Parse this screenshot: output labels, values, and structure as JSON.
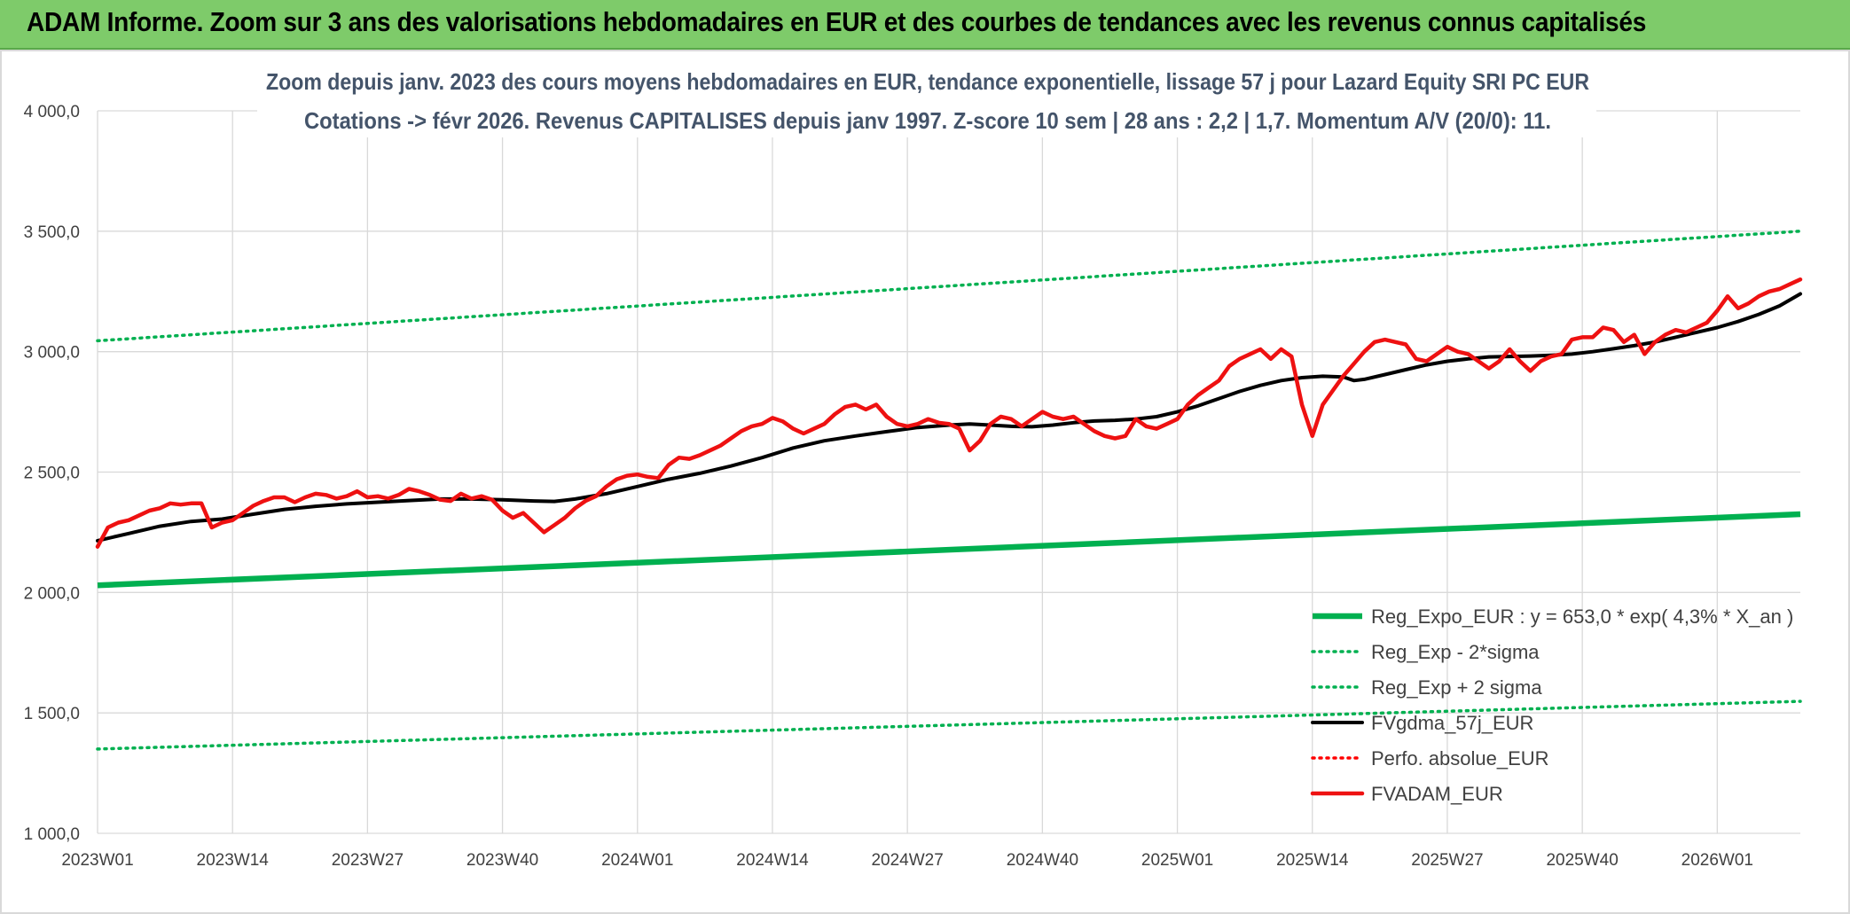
{
  "banner": {
    "title": "ADAM Informe. Zoom sur 3 ans des valorisations hebdomadaires en EUR et des courbes de tendances avec les revenus connus capitalisés"
  },
  "colors": {
    "banner_bg": "#7ecb6a",
    "reg_green": "#00b050",
    "dotted_green": "#00b050",
    "gdma_black": "#000000",
    "perf_red": "#ff0000",
    "fvadam_red": "#ee1111",
    "title_text": "#44546a",
    "grid": "#d9d9d9"
  },
  "chart_data": {
    "type": "line",
    "title_lines": [
      "Zoom depuis janv. 2023 des cours moyens hebdomadaires en EUR, tendance exponentielle, lissage 57 j pour Lazard Equity SRI PC EUR",
      "Cotations -> févr 2026. Revenus CAPITALISES depuis janv 1997. Z-score 10 sem | 28 ans : 2,2 | 1,7. Momentum A/V (20/0): 11."
    ],
    "ylim": [
      1000,
      4000
    ],
    "yticks": [
      {
        "value": 1000,
        "label": "1 000,0"
      },
      {
        "value": 1500,
        "label": "1 500,0"
      },
      {
        "value": 2000,
        "label": "2 000,0"
      },
      {
        "value": 2500,
        "label": "2 500,0"
      },
      {
        "value": 3000,
        "label": "3 000,0"
      },
      {
        "value": 3500,
        "label": "3 500,0"
      },
      {
        "value": 4000,
        "label": "4 000,0"
      }
    ],
    "x_weeks": 165,
    "xticks": [
      {
        "index": 0,
        "label": "2023W01"
      },
      {
        "index": 13,
        "label": "2023W14"
      },
      {
        "index": 26,
        "label": "2023W27"
      },
      {
        "index": 39,
        "label": "2023W40"
      },
      {
        "index": 52,
        "label": "2024W01"
      },
      {
        "index": 65,
        "label": "2024W14"
      },
      {
        "index": 78,
        "label": "2024W27"
      },
      {
        "index": 91,
        "label": "2024W40"
      },
      {
        "index": 104,
        "label": "2025W01"
      },
      {
        "index": 117,
        "label": "2025W14"
      },
      {
        "index": 130,
        "label": "2025W27"
      },
      {
        "index": 143,
        "label": "2025W40"
      },
      {
        "index": 156,
        "label": "2026W01"
      }
    ],
    "series": [
      {
        "name": "Reg_Expo_EUR : y = 653,0 * exp( 4,3% *  X_an )",
        "style": "solid-thick",
        "color": "#00b050",
        "points": [
          [
            0,
            2030
          ],
          [
            164,
            2325
          ]
        ]
      },
      {
        "name": "Reg_Exp - 2*sigma",
        "style": "dotted",
        "color": "#00b050",
        "points": [
          [
            0,
            1350
          ],
          [
            164,
            1548
          ]
        ]
      },
      {
        "name": "Reg_Exp + 2 sigma",
        "style": "dotted",
        "color": "#00b050",
        "points": [
          [
            0,
            3045
          ],
          [
            164,
            3500
          ]
        ]
      },
      {
        "name": "FVgdma_57j_EUR",
        "style": "solid",
        "color": "#000000",
        "points": [
          [
            0,
            2215
          ],
          [
            3,
            2245
          ],
          [
            6,
            2275
          ],
          [
            9,
            2295
          ],
          [
            12,
            2305
          ],
          [
            15,
            2325
          ],
          [
            18,
            2345
          ],
          [
            21,
            2358
          ],
          [
            24,
            2368
          ],
          [
            27,
            2375
          ],
          [
            30,
            2382
          ],
          [
            33,
            2388
          ],
          [
            36,
            2388
          ],
          [
            39,
            2385
          ],
          [
            42,
            2380
          ],
          [
            44,
            2378
          ],
          [
            46,
            2388
          ],
          [
            49,
            2410
          ],
          [
            52,
            2440
          ],
          [
            55,
            2470
          ],
          [
            58,
            2495
          ],
          [
            61,
            2525
          ],
          [
            64,
            2560
          ],
          [
            67,
            2600
          ],
          [
            70,
            2630
          ],
          [
            73,
            2650
          ],
          [
            76,
            2668
          ],
          [
            79,
            2685
          ],
          [
            82,
            2695
          ],
          [
            84,
            2700
          ],
          [
            86,
            2695
          ],
          [
            88,
            2690
          ],
          [
            90,
            2688
          ],
          [
            92,
            2695
          ],
          [
            94,
            2705
          ],
          [
            96,
            2712
          ],
          [
            98,
            2715
          ],
          [
            100,
            2720
          ],
          [
            102,
            2730
          ],
          [
            104,
            2750
          ],
          [
            106,
            2775
          ],
          [
            108,
            2805
          ],
          [
            110,
            2835
          ],
          [
            112,
            2860
          ],
          [
            114,
            2880
          ],
          [
            116,
            2892
          ],
          [
            118,
            2898
          ],
          [
            120,
            2895
          ],
          [
            121,
            2880
          ],
          [
            122,
            2885
          ],
          [
            124,
            2905
          ],
          [
            126,
            2925
          ],
          [
            128,
            2945
          ],
          [
            130,
            2960
          ],
          [
            132,
            2970
          ],
          [
            134,
            2978
          ],
          [
            136,
            2980
          ],
          [
            138,
            2982
          ],
          [
            140,
            2985
          ],
          [
            142,
            2990
          ],
          [
            144,
            3000
          ],
          [
            146,
            3012
          ],
          [
            148,
            3025
          ],
          [
            150,
            3040
          ],
          [
            152,
            3060
          ],
          [
            154,
            3080
          ],
          [
            156,
            3100
          ],
          [
            158,
            3125
          ],
          [
            160,
            3155
          ],
          [
            162,
            3190
          ],
          [
            164,
            3240
          ]
        ]
      },
      {
        "name": "Perfo. absolue_EUR",
        "style": "dotted",
        "color": "#ff0000",
        "points": []
      },
      {
        "name": "FVADAM_EUR",
        "style": "solid-medium",
        "color": "#ee1111",
        "points": [
          [
            0,
            2190
          ],
          [
            1,
            2270
          ],
          [
            2,
            2290
          ],
          [
            3,
            2300
          ],
          [
            4,
            2320
          ],
          [
            5,
            2340
          ],
          [
            6,
            2350
          ],
          [
            7,
            2370
          ],
          [
            8,
            2365
          ],
          [
            9,
            2370
          ],
          [
            10,
            2370
          ],
          [
            11,
            2270
          ],
          [
            12,
            2290
          ],
          [
            13,
            2300
          ],
          [
            14,
            2330
          ],
          [
            15,
            2360
          ],
          [
            16,
            2380
          ],
          [
            17,
            2395
          ],
          [
            18,
            2395
          ],
          [
            19,
            2375
          ],
          [
            20,
            2395
          ],
          [
            21,
            2410
          ],
          [
            22,
            2405
          ],
          [
            23,
            2390
          ],
          [
            24,
            2400
          ],
          [
            25,
            2420
          ],
          [
            26,
            2395
          ],
          [
            27,
            2400
          ],
          [
            28,
            2390
          ],
          [
            29,
            2405
          ],
          [
            30,
            2430
          ],
          [
            31,
            2420
          ],
          [
            32,
            2405
          ],
          [
            33,
            2385
          ],
          [
            34,
            2380
          ],
          [
            35,
            2410
          ],
          [
            36,
            2390
          ],
          [
            37,
            2400
          ],
          [
            38,
            2385
          ],
          [
            39,
            2340
          ],
          [
            40,
            2310
          ],
          [
            41,
            2330
          ],
          [
            42,
            2290
          ],
          [
            43,
            2250
          ],
          [
            44,
            2280
          ],
          [
            45,
            2310
          ],
          [
            46,
            2350
          ],
          [
            47,
            2380
          ],
          [
            48,
            2400
          ],
          [
            49,
            2440
          ],
          [
            50,
            2470
          ],
          [
            51,
            2485
          ],
          [
            52,
            2490
          ],
          [
            53,
            2480
          ],
          [
            54,
            2475
          ],
          [
            55,
            2530
          ],
          [
            56,
            2560
          ],
          [
            57,
            2555
          ],
          [
            58,
            2570
          ],
          [
            59,
            2590
          ],
          [
            60,
            2610
          ],
          [
            61,
            2640
          ],
          [
            62,
            2670
          ],
          [
            63,
            2690
          ],
          [
            64,
            2700
          ],
          [
            65,
            2725
          ],
          [
            66,
            2710
          ],
          [
            67,
            2680
          ],
          [
            68,
            2660
          ],
          [
            69,
            2680
          ],
          [
            70,
            2700
          ],
          [
            71,
            2740
          ],
          [
            72,
            2770
          ],
          [
            73,
            2780
          ],
          [
            74,
            2760
          ],
          [
            75,
            2780
          ],
          [
            76,
            2730
          ],
          [
            77,
            2700
          ],
          [
            78,
            2690
          ],
          [
            79,
            2700
          ],
          [
            80,
            2720
          ],
          [
            81,
            2705
          ],
          [
            82,
            2700
          ],
          [
            83,
            2680
          ],
          [
            84,
            2590
          ],
          [
            85,
            2630
          ],
          [
            86,
            2700
          ],
          [
            87,
            2730
          ],
          [
            88,
            2720
          ],
          [
            89,
            2690
          ],
          [
            90,
            2720
          ],
          [
            91,
            2750
          ],
          [
            92,
            2730
          ],
          [
            93,
            2720
          ],
          [
            94,
            2730
          ],
          [
            95,
            2700
          ],
          [
            96,
            2670
          ],
          [
            97,
            2650
          ],
          [
            98,
            2640
          ],
          [
            99,
            2650
          ],
          [
            100,
            2720
          ],
          [
            101,
            2690
          ],
          [
            102,
            2680
          ],
          [
            103,
            2700
          ],
          [
            104,
            2720
          ],
          [
            105,
            2780
          ],
          [
            106,
            2820
          ],
          [
            107,
            2850
          ],
          [
            108,
            2880
          ],
          [
            109,
            2940
          ],
          [
            110,
            2970
          ],
          [
            111,
            2990
          ],
          [
            112,
            3010
          ],
          [
            113,
            2970
          ],
          [
            114,
            3010
          ],
          [
            115,
            2980
          ],
          [
            116,
            2780
          ],
          [
            117,
            2650
          ],
          [
            118,
            2780
          ],
          [
            119,
            2840
          ],
          [
            120,
            2900
          ],
          [
            121,
            2950
          ],
          [
            122,
            3000
          ],
          [
            123,
            3040
          ],
          [
            124,
            3050
          ],
          [
            125,
            3040
          ],
          [
            126,
            3030
          ],
          [
            127,
            2970
          ],
          [
            128,
            2960
          ],
          [
            129,
            2990
          ],
          [
            130,
            3020
          ],
          [
            131,
            3000
          ],
          [
            132,
            2990
          ],
          [
            133,
            2960
          ],
          [
            134,
            2930
          ],
          [
            135,
            2960
          ],
          [
            136,
            3010
          ],
          [
            137,
            2960
          ],
          [
            138,
            2920
          ],
          [
            139,
            2960
          ],
          [
            140,
            2980
          ],
          [
            141,
            2990
          ],
          [
            142,
            3050
          ],
          [
            143,
            3060
          ],
          [
            144,
            3060
          ],
          [
            145,
            3100
          ],
          [
            146,
            3090
          ],
          [
            147,
            3040
          ],
          [
            148,
            3070
          ],
          [
            149,
            2990
          ],
          [
            150,
            3040
          ],
          [
            151,
            3070
          ],
          [
            152,
            3090
          ],
          [
            153,
            3080
          ],
          [
            154,
            3100
          ],
          [
            155,
            3120
          ],
          [
            156,
            3170
          ],
          [
            157,
            3230
          ],
          [
            158,
            3180
          ],
          [
            159,
            3200
          ],
          [
            160,
            3230
          ],
          [
            161,
            3250
          ],
          [
            162,
            3260
          ],
          [
            163,
            3280
          ],
          [
            164,
            3300
          ]
        ]
      }
    ],
    "legend": {
      "placement": "bottom-right",
      "entries": [
        {
          "label": "Reg_Expo_EUR : y = 653,0 * exp( 4,3% *  X_an )",
          "style": "solid-thick",
          "color": "#00b050"
        },
        {
          "label": "Reg_Exp - 2*sigma",
          "style": "dotted",
          "color": "#00b050"
        },
        {
          "label": "Reg_Exp + 2 sigma",
          "style": "dotted",
          "color": "#00b050"
        },
        {
          "label": "FVgdma_57j_EUR",
          "style": "solid",
          "color": "#000000"
        },
        {
          "label": "Perfo. absolue_EUR",
          "style": "dotted",
          "color": "#ff0000"
        },
        {
          "label": "FVADAM_EUR",
          "style": "solid-medium",
          "color": "#ee1111"
        }
      ]
    },
    "grid": true
  }
}
